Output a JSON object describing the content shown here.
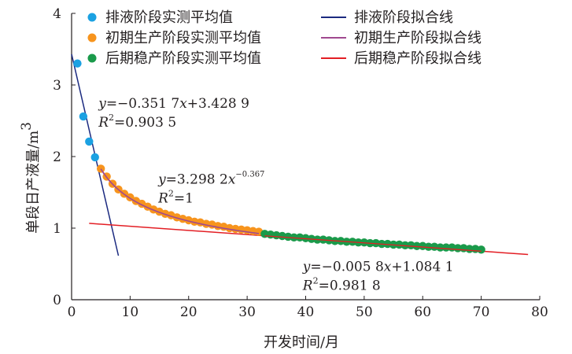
{
  "chart_data": {
    "type": "scatter",
    "xlabel": "开发时间/月",
    "ylabel": "单段日产液量/m",
    "ylabel_sup": "3",
    "xlim": [
      0,
      80
    ],
    "ylim": [
      0,
      4
    ],
    "x_ticks": [
      "0",
      "10",
      "20",
      "30",
      "40",
      "50",
      "60",
      "70",
      "80"
    ],
    "y_ticks": [
      "0",
      "1",
      "2",
      "3",
      "4"
    ],
    "grid": false,
    "legend_position": "top",
    "colors": {
      "drainage": "#1ba1e2",
      "early": "#f7941d",
      "late": "#1a9a4a",
      "drainage_fit": "#1b2a80",
      "early_fit": "#a0498f",
      "late_fit": "#e31e24",
      "axis": "#231f20"
    },
    "series": [
      {
        "name": "排液阶段实测平均值",
        "kind": "points",
        "color_key": "drainage",
        "x": [
          1,
          2,
          3,
          4
        ],
        "y": [
          3.3,
          2.56,
          2.21,
          1.99
        ]
      },
      {
        "name": "初期生产阶段实测平均值",
        "kind": "points",
        "color_key": "early",
        "x": [
          5,
          6,
          7,
          8,
          9,
          10,
          11,
          12,
          13,
          14,
          15,
          16,
          17,
          18,
          19,
          20,
          21,
          22,
          23,
          24,
          25,
          26,
          27,
          28,
          29,
          30,
          31,
          32
        ],
        "y": [
          1.83,
          1.72,
          1.62,
          1.54,
          1.48,
          1.43,
          1.38,
          1.34,
          1.3,
          1.26,
          1.23,
          1.2,
          1.18,
          1.15,
          1.13,
          1.11,
          1.09,
          1.08,
          1.06,
          1.05,
          1.03,
          1.02,
          1.0,
          0.99,
          0.98,
          0.97,
          0.96,
          0.95
        ]
      },
      {
        "name": "后期稳产阶段实测平均值",
        "kind": "points",
        "color_key": "late",
        "x": [
          33,
          34,
          35,
          36,
          37,
          38,
          39,
          40,
          41,
          42,
          43,
          44,
          45,
          46,
          47,
          48,
          49,
          50,
          51,
          52,
          53,
          54,
          55,
          56,
          57,
          58,
          59,
          60,
          61,
          62,
          63,
          64,
          65,
          66,
          67,
          68,
          69,
          70
        ],
        "y": [
          0.92,
          0.91,
          0.9,
          0.89,
          0.88,
          0.87,
          0.87,
          0.86,
          0.85,
          0.84,
          0.84,
          0.83,
          0.82,
          0.82,
          0.81,
          0.81,
          0.8,
          0.8,
          0.79,
          0.79,
          0.78,
          0.78,
          0.77,
          0.77,
          0.76,
          0.76,
          0.75,
          0.75,
          0.74,
          0.74,
          0.73,
          0.73,
          0.73,
          0.72,
          0.72,
          0.71,
          0.71,
          0.7
        ]
      },
      {
        "name": "排液阶段拟合线",
        "kind": "linear",
        "color_key": "drainage_fit",
        "slope": -0.3517,
        "intercept": 3.4289,
        "x_range": [
          0,
          8
        ]
      },
      {
        "name": "初期生产阶段拟合线",
        "kind": "power",
        "color_key": "early_fit",
        "coef": 3.2982,
        "exponent": -0.367,
        "x_range": [
          5,
          32
        ]
      },
      {
        "name": "后期稳产阶段拟合线",
        "kind": "linear",
        "color_key": "late_fit",
        "slope": -0.0058,
        "intercept": 1.0841,
        "x_range": [
          3,
          78
        ]
      }
    ],
    "annotations": [
      {
        "id": "drainage",
        "anchor": [
          4.6,
          2.68
        ],
        "eq_prefix": "y",
        "eq_text": "=−0.351 7",
        "eq_var": "x",
        "eq_tail": "+3.428 9",
        "eq_sup": "",
        "r_prefix": "R",
        "r_sup": "2",
        "r_text": "=0.903 5"
      },
      {
        "id": "early",
        "anchor": [
          14.8,
          1.62
        ],
        "eq_prefix": "y",
        "eq_text": "=3.298 2",
        "eq_var": "x",
        "eq_tail": "",
        "eq_sup": "−0.367",
        "r_prefix": "R",
        "r_sup": "2",
        "r_text": "=1"
      },
      {
        "id": "late",
        "anchor": [
          39.5,
          0.4
        ],
        "eq_prefix": "y",
        "eq_text": "=−0.005 8",
        "eq_var": "x",
        "eq_tail": "+1.084 1",
        "eq_sup": "",
        "r_prefix": "R",
        "r_sup": "2",
        "r_text": "=0.981 8"
      }
    ]
  }
}
